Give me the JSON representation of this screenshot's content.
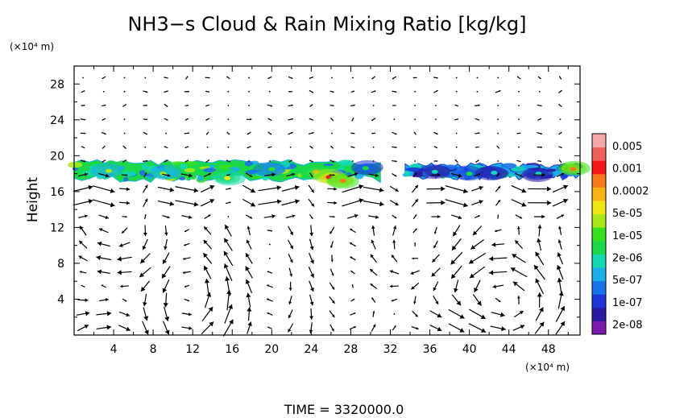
{
  "chart_data": {
    "type": "heatmap",
    "title": "NH3−s Cloud & Rain Mixing Ratio [kg/kg]",
    "ylabel": "Height",
    "y_unit": "(×10⁴ m)",
    "x_unit": "(×10⁴ m)",
    "footer": "TIME = 3320000.0",
    "xlim": [
      0,
      51.2
    ],
    "ylim": [
      0,
      30
    ],
    "x_ticks": [
      "4",
      "8",
      "12",
      "16",
      "20",
      "24",
      "28",
      "32",
      "36",
      "40",
      "44",
      "48"
    ],
    "y_ticks": [
      "4",
      "8",
      "12",
      "16",
      "20",
      "24",
      "28"
    ],
    "colorbar": {
      "colors": [
        "#7a1aa8",
        "#2a1aa0",
        "#1c36d8",
        "#1a72e8",
        "#19aee8",
        "#14d8b4",
        "#1ad84a",
        "#36e01e",
        "#a8e818",
        "#f0e614",
        "#f8b414",
        "#f87a1c",
        "#f01818",
        "#f0605a",
        "#f6a8a8"
      ],
      "labels": [
        "0.005",
        "0.001",
        "0.0002",
        "5e-05",
        "1e-05",
        "2e-06",
        "5e-07",
        "1e-07",
        "2e-08"
      ]
    },
    "cloud_regions": [
      {
        "x0": 0,
        "x1": 31,
        "ybot": 17.0,
        "ytop": 19.6,
        "level": 6
      },
      {
        "x0": 33.5,
        "x1": 51.2,
        "ybot": 17.3,
        "ytop": 19.2,
        "level": 4
      }
    ],
    "hotspots": [
      {
        "x": 3.5,
        "y": 18.3,
        "level": 8
      },
      {
        "x": 9,
        "y": 18.0,
        "level": 8
      },
      {
        "x": 15.5,
        "y": 17.5,
        "level": 9
      },
      {
        "x": 20,
        "y": 18.5,
        "level": 7
      },
      {
        "x": 24.5,
        "y": 18.2,
        "level": 10
      },
      {
        "x": 25.8,
        "y": 17.6,
        "level": 12
      },
      {
        "x": 27.2,
        "y": 17.2,
        "level": 11
      },
      {
        "x": 29.5,
        "y": 18.6,
        "level": 6
      },
      {
        "x": 36.5,
        "y": 18.2,
        "level": 5
      },
      {
        "x": 40,
        "y": 18.0,
        "level": 6
      },
      {
        "x": 42.5,
        "y": 18.1,
        "level": 5
      },
      {
        "x": 47,
        "y": 18.0,
        "level": 5
      },
      {
        "x": 50.5,
        "y": 18.5,
        "level": 11
      }
    ],
    "wind_vectors": "dense field of black arrows, strongest near 13–18 (×10⁴ m) height, circulation cells near x 12 and 36–48"
  }
}
